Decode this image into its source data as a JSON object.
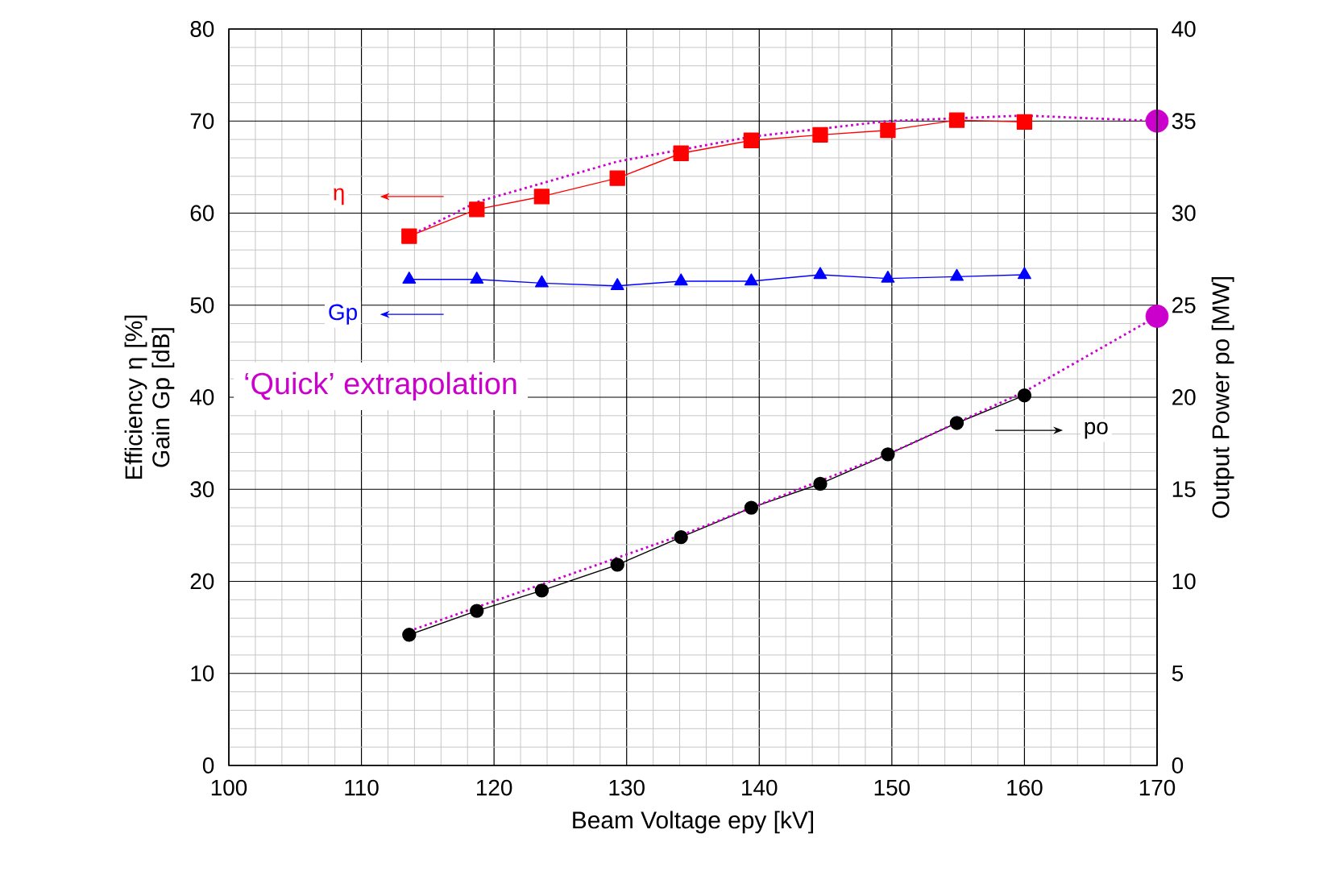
{
  "chart_data": {
    "type": "line",
    "xlabel": "Beam Voltage  epy [kV]",
    "ylabel": "Efficiency  η [%] Gain  Gp [dB]",
    "y2label": "Output Power  po [MW]",
    "annotations": [
      "‘Quick’ extrapolation"
    ],
    "x": [
      113.6,
      118.7,
      123.6,
      129.3,
      134.1,
      139.4,
      144.6,
      149.7,
      154.9,
      160.0
    ],
    "xlim": [
      100,
      170
    ],
    "xticks": [
      100,
      110,
      120,
      130,
      140,
      150,
      160,
      170
    ],
    "ylim": [
      0,
      80
    ],
    "yticks": [
      0,
      10,
      20,
      30,
      40,
      50,
      60,
      70,
      80
    ],
    "y2lim": [
      0,
      40
    ],
    "y2ticks": [
      0,
      5,
      10,
      15,
      20,
      25,
      30,
      35,
      40
    ],
    "grid": true,
    "legend": "top left",
    "series": [
      {
        "name": "η",
        "color": "#ff0000",
        "marker": "square",
        "values": [
          57.5,
          60.4,
          61.8,
          63.8,
          66.5,
          67.9,
          68.5,
          69.0,
          70.1,
          69.9
        ]
      },
      {
        "name": "Gp",
        "color": "#0000ff",
        "marker": "triangle",
        "values": [
          52.8,
          52.8,
          52.4,
          52.1,
          52.6,
          52.6,
          53.3,
          52.9,
          53.1,
          53.3
        ]
      },
      {
        "name": "po",
        "color": "#000000",
        "marker": "circle",
        "axis": "y2",
        "values": [
          7.1,
          8.4,
          9.5,
          10.9,
          12.4,
          14.0,
          15.3,
          16.9,
          18.6,
          20.1
        ]
      },
      {
        "color": "#cc00cc",
        "marker": "none",
        "line_style": "dotted",
        "x": [
          113.6,
          118.7,
          129.3,
          139.4,
          149.7,
          160.0,
          170.0
        ],
        "values": [
          57.5,
          61.2,
          65.6,
          68.3,
          70.0,
          70.6,
          70.0
        ]
      },
      {
        "color": "#cc00cc",
        "marker": "none",
        "line_style": "dotted",
        "axis": "y2",
        "x": [
          113.6,
          134.1,
          149.7,
          160.0,
          170.0
        ],
        "values": [
          7.3,
          12.5,
          16.9,
          20.3,
          24.4
        ]
      },
      {
        "type": "scatter",
        "color": "#cc00cc",
        "marker": "circle",
        "x": [
          170.0
        ],
        "values": [
          70.0
        ]
      },
      {
        "type": "scatter",
        "color": "#cc00cc",
        "marker": "circle",
        "axis": "y2",
        "x": [
          170.0
        ],
        "values": [
          24.4
        ]
      }
    ]
  }
}
